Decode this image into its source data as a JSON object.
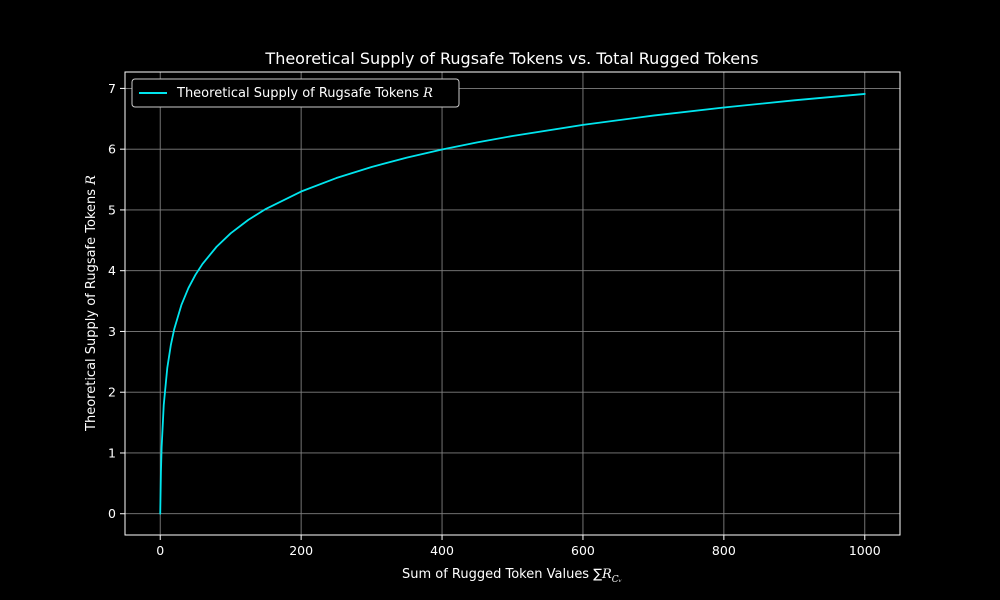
{
  "colors": {
    "background": "#000000",
    "text": "#ffffff",
    "grid": "#808080",
    "series": "#00e5ee"
  },
  "chart_data": {
    "type": "line",
    "title": "Theoretical Supply of Rugsafe Tokens vs. Total Rugged Tokens",
    "xlabel": "Sum of Rugged Token Values ∑R",
    "xlabel_subscript": "Cᵥ",
    "ylabel": "Theoretical Supply of Rugsafe Tokens R",
    "xlim": [
      -50,
      1050
    ],
    "ylim": [
      -0.35,
      7.27
    ],
    "xticks": [
      0,
      200,
      400,
      600,
      800,
      1000
    ],
    "yticks": [
      0,
      1,
      2,
      3,
      4,
      5,
      6,
      7
    ],
    "grid": true,
    "legend_position": "upper-left",
    "series": [
      {
        "name": "Theoretical Supply of Rugsafe Tokens R",
        "color": "#00e5ee",
        "x": [
          0,
          1,
          2,
          5,
          10,
          15,
          20,
          30,
          40,
          50,
          60,
          80,
          100,
          125,
          150,
          200,
          250,
          300,
          350,
          400,
          450,
          500,
          600,
          700,
          800,
          900,
          1000
        ],
        "y": [
          0,
          0.693,
          1.099,
          1.792,
          2.398,
          2.773,
          3.045,
          3.434,
          3.714,
          3.932,
          4.111,
          4.394,
          4.615,
          4.836,
          5.017,
          5.303,
          5.525,
          5.707,
          5.861,
          5.994,
          6.111,
          6.217,
          6.399,
          6.553,
          6.686,
          6.804,
          6.909
        ]
      }
    ]
  }
}
